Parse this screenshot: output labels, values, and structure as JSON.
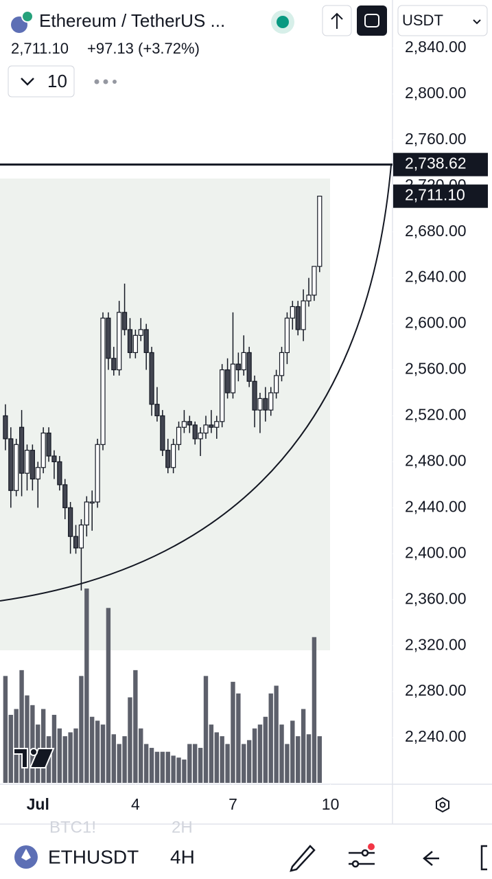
{
  "header": {
    "symbol": "Ethereum / TetherUS ...",
    "price": "2,711.10",
    "change": "+97.13 (+3.72%)",
    "interval_count": "10",
    "currency": "USDT"
  },
  "chart_data": {
    "type": "candlestick",
    "xlim": [
      -1,
      71.2
    ],
    "xticks": [
      {
        "value": 6,
        "label": "Jul"
      },
      {
        "value": 24,
        "label": "4"
      },
      {
        "value": 42,
        "label": "7"
      },
      {
        "value": 60,
        "label": "10"
      }
    ],
    "ylim": [
      2199.4,
      2881.8
    ],
    "yticks": [
      {
        "value": 2840,
        "label": "2,840.00"
      },
      {
        "value": 2800,
        "label": "2,800.00"
      },
      {
        "value": 2760,
        "label": "2,760.00"
      },
      {
        "value": 2720,
        "label": "2,720.00"
      },
      {
        "value": 2680,
        "label": "2,680.00"
      },
      {
        "value": 2640,
        "label": "2,640.00"
      },
      {
        "value": 2600,
        "label": "2,600.00"
      },
      {
        "value": 2560,
        "label": "2,560.00"
      },
      {
        "value": 2520,
        "label": "2,520.00"
      },
      {
        "value": 2480,
        "label": "2,480.00"
      },
      {
        "value": 2440,
        "label": "2,440.00"
      },
      {
        "value": 2400,
        "label": "2,400.00"
      },
      {
        "value": 2360,
        "label": "2,360.00"
      },
      {
        "value": 2320,
        "label": "2,320.00"
      },
      {
        "value": 2280,
        "label": "2,280.00"
      },
      {
        "value": 2240,
        "label": "2,240.00"
      }
    ],
    "open": [
      2520,
      2500,
      2455,
      2510,
      2470,
      2490,
      2465,
      2475,
      2505,
      2485,
      2480,
      2460,
      2440,
      2415,
      2405,
      2425,
      2445,
      2445,
      2495,
      2605,
      2570,
      2560,
      2610,
      2595,
      2575,
      2590,
      2595,
      2575,
      2530,
      2520,
      2490,
      2475,
      2495,
      2510,
      2515,
      2512,
      2500,
      2505,
      2512,
      2510,
      2515,
      2560,
      2540,
      2565,
      2560,
      2575,
      2550,
      2525,
      2535,
      2525,
      2540,
      2555,
      2575,
      2605,
      2615,
      2595,
      2620,
      2625,
      2650
    ],
    "high": [
      2530,
      2510,
      2500,
      2525,
      2495,
      2495,
      2480,
      2510,
      2510,
      2490,
      2485,
      2465,
      2445,
      2425,
      2430,
      2450,
      2455,
      2500,
      2610,
      2610,
      2580,
      2620,
      2635,
      2605,
      2595,
      2605,
      2600,
      2580,
      2545,
      2525,
      2500,
      2500,
      2515,
      2525,
      2520,
      2515,
      2510,
      2520,
      2525,
      2520,
      2565,
      2570,
      2610,
      2575,
      2590,
      2580,
      2555,
      2540,
      2545,
      2545,
      2560,
      2580,
      2610,
      2620,
      2620,
      2630,
      2640,
      2650,
      2711.1
    ],
    "low": [
      2490,
      2440,
      2450,
      2450,
      2455,
      2455,
      2440,
      2470,
      2480,
      2465,
      2455,
      2430,
      2400,
      2400,
      2368,
      2415,
      2420,
      2440,
      2490,
      2560,
      2555,
      2555,
      2590,
      2570,
      2570,
      2585,
      2560,
      2520,
      2515,
      2485,
      2470,
      2470,
      2490,
      2505,
      2505,
      2495,
      2485,
      2500,
      2505,
      2500,
      2510,
      2535,
      2535,
      2550,
      2555,
      2545,
      2510,
      2505,
      2515,
      2520,
      2535,
      2550,
      2565,
      2595,
      2590,
      2585,
      2615,
      2620,
      2645
    ],
    "close": [
      2500,
      2455,
      2495,
      2470,
      2490,
      2465,
      2475,
      2505,
      2485,
      2480,
      2460,
      2440,
      2415,
      2405,
      2425,
      2445,
      2445,
      2495,
      2605,
      2570,
      2560,
      2610,
      2595,
      2575,
      2590,
      2595,
      2575,
      2530,
      2520,
      2490,
      2475,
      2495,
      2510,
      2515,
      2512,
      2500,
      2505,
      2512,
      2510,
      2515,
      2560,
      2540,
      2565,
      2560,
      2575,
      2550,
      2525,
      2535,
      2525,
      2540,
      2555,
      2575,
      2605,
      2615,
      2595,
      2620,
      2625,
      2650,
      2711.1
    ],
    "volume": [
      55,
      35,
      38,
      58,
      45,
      40,
      30,
      38,
      24,
      35,
      28,
      24,
      26,
      28,
      55,
      100,
      34,
      32,
      30,
      90,
      25,
      20,
      24,
      44,
      58,
      28,
      20,
      18,
      16,
      16,
      16,
      14,
      13,
      12,
      20,
      20,
      18,
      55,
      30,
      26,
      24,
      20,
      52,
      46,
      20,
      22,
      28,
      30,
      34,
      46,
      50,
      30,
      20,
      32,
      24,
      38,
      25,
      75,
      24
    ],
    "volume_max": 100,
    "last_price": 2711.1,
    "last_price_label": "2,711.10",
    "hline": 2738.62,
    "hline_label": "2,738.62"
  },
  "footer": {
    "ghost_symbol": "BTC1!",
    "ghost_interval": "2H",
    "symbol": "ETHUSDT",
    "interval": "4H"
  }
}
